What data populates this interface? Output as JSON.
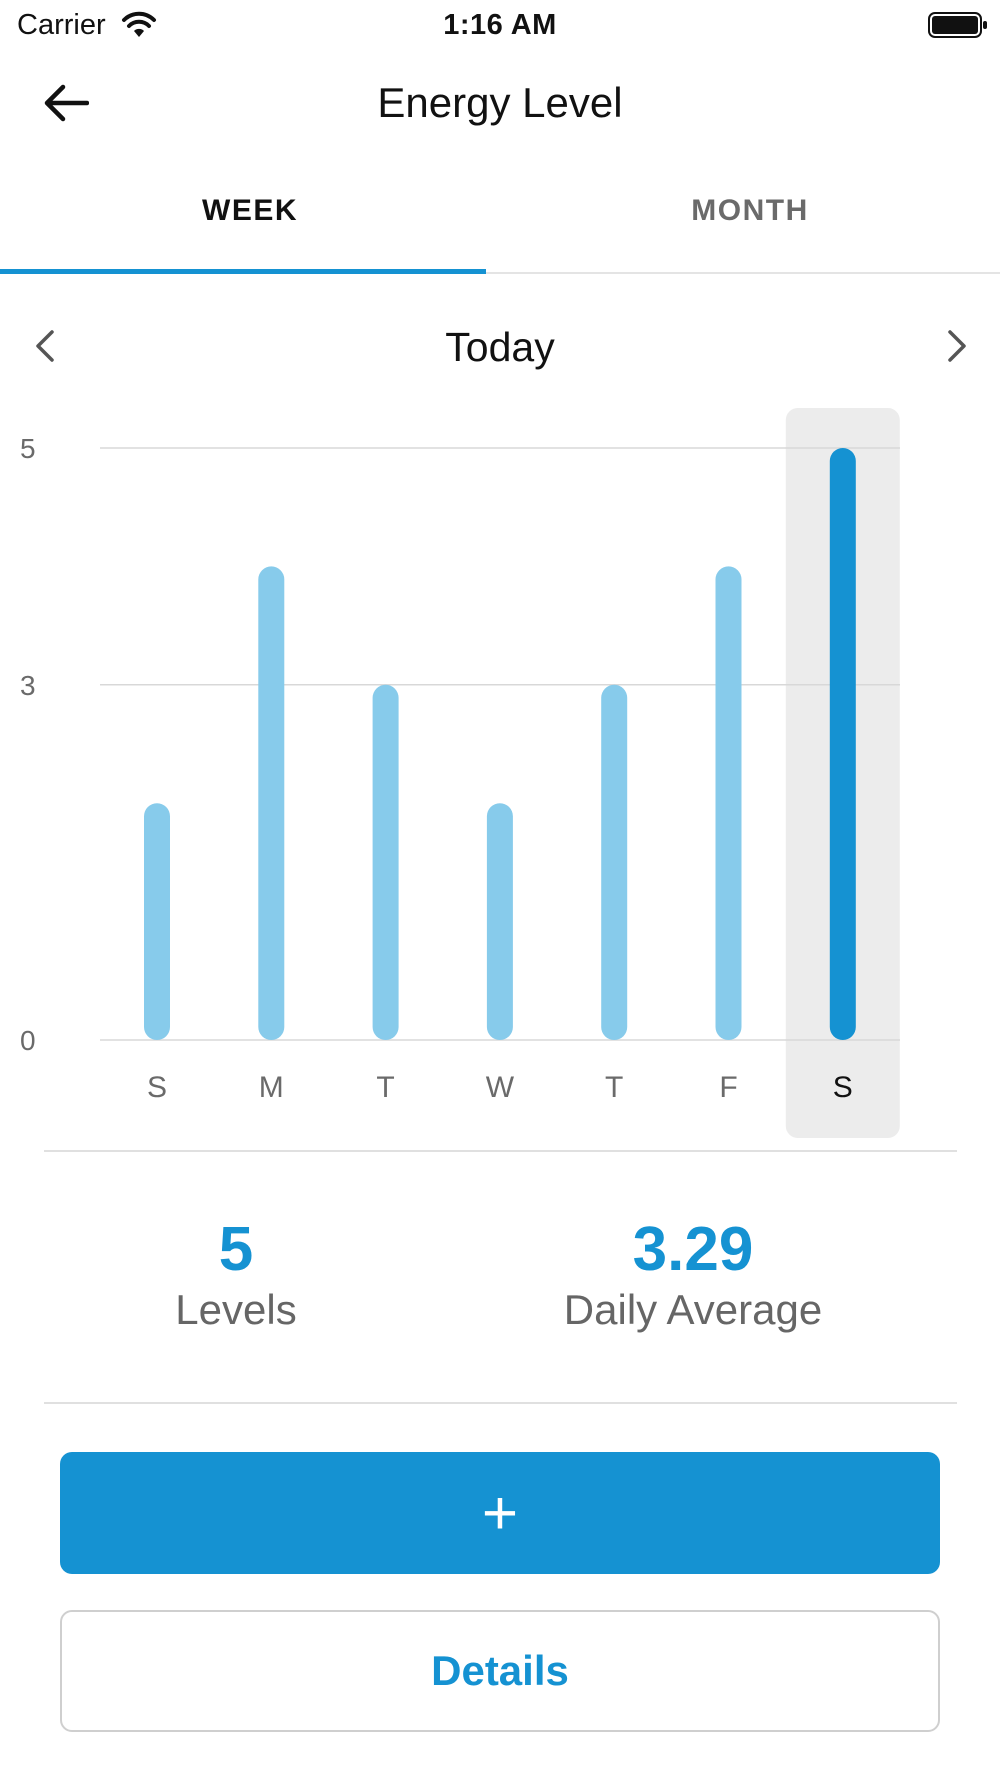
{
  "status_bar": {
    "carrier": "Carrier",
    "time": "1:16 AM",
    "wifi_icon": "wifi-icon",
    "battery_icon": "battery-icon"
  },
  "nav": {
    "title": "Energy Level",
    "back_icon": "arrow-left-icon"
  },
  "tabs": [
    {
      "label": "WEEK",
      "selected": true
    },
    {
      "label": "MONTH",
      "selected": false
    }
  ],
  "period": {
    "label": "Today",
    "prev_icon": "chevron-left-icon",
    "next_icon": "chevron-right-icon"
  },
  "chart_data": {
    "type": "bar",
    "categories": [
      "S",
      "M",
      "T",
      "W",
      "T",
      "F",
      "S"
    ],
    "values": [
      2,
      4,
      3,
      2,
      3,
      4,
      5
    ],
    "highlighted_index": 6,
    "yticks": [
      0,
      3,
      5
    ],
    "ylim": [
      0,
      5
    ],
    "grid": true,
    "colors": {
      "bar": "#87cbeb",
      "highlight_bar": "#1592d2",
      "highlight_bg": "#ececec"
    }
  },
  "stats": {
    "levels_value": "5",
    "levels_label": "Levels",
    "average_value": "3.29",
    "average_label": "Daily Average"
  },
  "actions": {
    "add_label": "+",
    "details_label": "Details"
  },
  "colors": {
    "accent": "#1592d2"
  }
}
